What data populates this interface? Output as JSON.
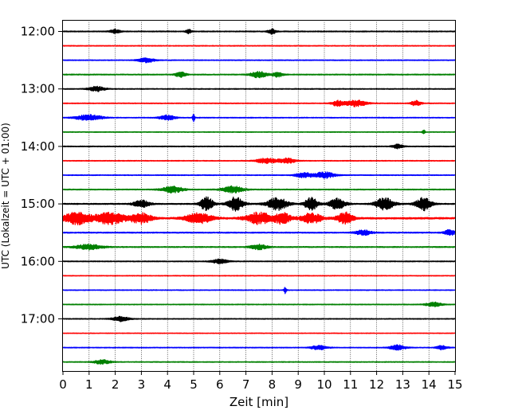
{
  "chart_data": {
    "type": "line",
    "title": "",
    "xlabel": "Zeit  [min]",
    "ylabel": "UTC (Lokalzeit = UTC + 01:00)",
    "xlim": [
      0,
      15
    ],
    "x_ticks": [
      "0",
      "1",
      "2",
      "3",
      "4",
      "5",
      "6",
      "7",
      "8",
      "9",
      "10",
      "11",
      "12",
      "13",
      "14",
      "15"
    ],
    "y_ticks": [
      {
        "label": "12:00",
        "row": 0
      },
      {
        "label": "13:00",
        "row": 4
      },
      {
        "label": "14:00",
        "row": 8
      },
      {
        "label": "15:00",
        "row": 12
      },
      {
        "label": "16:00",
        "row": 16
      },
      {
        "label": "17:00",
        "row": 20
      }
    ],
    "grid": "x-dotted",
    "trace_colors": [
      "#000000",
      "#ff0000",
      "#0000ff",
      "#008000"
    ],
    "rows": [
      {
        "time": "12:00",
        "level": 0.18,
        "bursts": [
          {
            "x": 2.0,
            "amp": 0.25,
            "w": 0.2
          },
          {
            "x": 8.0,
            "amp": 0.35,
            "w": 0.15
          },
          {
            "x": 4.8,
            "amp": 0.3,
            "w": 0.1
          }
        ]
      },
      {
        "time": "12:15",
        "level": 0.15,
        "bursts": []
      },
      {
        "time": "12:30",
        "level": 0.15,
        "bursts": [
          {
            "x": 3.2,
            "amp": 0.35,
            "w": 0.3
          }
        ]
      },
      {
        "time": "12:45",
        "level": 0.18,
        "bursts": [
          {
            "x": 4.5,
            "amp": 0.35,
            "w": 0.2
          },
          {
            "x": 7.5,
            "amp": 0.45,
            "w": 0.3
          },
          {
            "x": 8.2,
            "amp": 0.35,
            "w": 0.2
          }
        ]
      },
      {
        "time": "13:00",
        "level": 0.16,
        "bursts": [
          {
            "x": 1.3,
            "amp": 0.35,
            "w": 0.3
          }
        ]
      },
      {
        "time": "13:15",
        "level": 0.15,
        "bursts": [
          {
            "x": 10.5,
            "amp": 0.4,
            "w": 0.2
          },
          {
            "x": 11.2,
            "amp": 0.45,
            "w": 0.4
          },
          {
            "x": 13.5,
            "amp": 0.35,
            "w": 0.2
          }
        ]
      },
      {
        "time": "13:30",
        "level": 0.15,
        "bursts": [
          {
            "x": 1.0,
            "amp": 0.4,
            "w": 0.5
          },
          {
            "x": 4.0,
            "amp": 0.35,
            "w": 0.3
          },
          {
            "x": 5.0,
            "amp": 0.6,
            "w": 0.04
          }
        ]
      },
      {
        "time": "13:45",
        "level": 0.14,
        "bursts": [
          {
            "x": 13.8,
            "amp": 0.35,
            "w": 0.05
          }
        ]
      },
      {
        "time": "14:00",
        "level": 0.16,
        "bursts": [
          {
            "x": 12.8,
            "amp": 0.3,
            "w": 0.2
          }
        ]
      },
      {
        "time": "14:15",
        "level": 0.15,
        "bursts": [
          {
            "x": 7.8,
            "amp": 0.35,
            "w": 0.4
          },
          {
            "x": 8.6,
            "amp": 0.35,
            "w": 0.3
          }
        ]
      },
      {
        "time": "14:30",
        "level": 0.15,
        "bursts": [
          {
            "x": 9.2,
            "amp": 0.35,
            "w": 0.3
          },
          {
            "x": 10.0,
            "amp": 0.45,
            "w": 0.4
          }
        ]
      },
      {
        "time": "14:45",
        "level": 0.18,
        "bursts": [
          {
            "x": 4.2,
            "amp": 0.45,
            "w": 0.4
          },
          {
            "x": 6.5,
            "amp": 0.45,
            "w": 0.4
          }
        ]
      },
      {
        "time": "15:00",
        "level": 0.22,
        "bursts": [
          {
            "x": 5.5,
            "amp": 0.95,
            "w": 0.25
          },
          {
            "x": 6.6,
            "amp": 0.95,
            "w": 0.3
          },
          {
            "x": 8.2,
            "amp": 0.85,
            "w": 0.4
          },
          {
            "x": 9.5,
            "amp": 0.9,
            "w": 0.25
          },
          {
            "x": 10.5,
            "amp": 0.8,
            "w": 0.3
          },
          {
            "x": 12.3,
            "amp": 0.85,
            "w": 0.35
          },
          {
            "x": 13.8,
            "amp": 0.9,
            "w": 0.3
          },
          {
            "x": 3.0,
            "amp": 0.5,
            "w": 0.3
          }
        ]
      },
      {
        "time": "15:15",
        "level": 0.3,
        "bursts": [
          {
            "x": 0.5,
            "amp": 0.85,
            "w": 0.5
          },
          {
            "x": 1.8,
            "amp": 0.8,
            "w": 0.6
          },
          {
            "x": 3.0,
            "amp": 0.7,
            "w": 0.4
          },
          {
            "x": 5.2,
            "amp": 0.7,
            "w": 0.5
          },
          {
            "x": 7.5,
            "amp": 0.8,
            "w": 0.5
          },
          {
            "x": 8.4,
            "amp": 0.75,
            "w": 0.3
          },
          {
            "x": 9.5,
            "amp": 0.7,
            "w": 0.4
          },
          {
            "x": 10.8,
            "amp": 0.8,
            "w": 0.3
          }
        ]
      },
      {
        "time": "15:30",
        "level": 0.2,
        "bursts": [
          {
            "x": 11.5,
            "amp": 0.35,
            "w": 0.3
          },
          {
            "x": 14.8,
            "amp": 0.4,
            "w": 0.2
          }
        ]
      },
      {
        "time": "15:45",
        "level": 0.2,
        "bursts": [
          {
            "x": 1.0,
            "amp": 0.35,
            "w": 0.5
          },
          {
            "x": 7.5,
            "amp": 0.35,
            "w": 0.3
          }
        ]
      },
      {
        "time": "16:00",
        "level": 0.17,
        "bursts": [
          {
            "x": 6.0,
            "amp": 0.3,
            "w": 0.3
          }
        ]
      },
      {
        "time": "16:15",
        "level": 0.13,
        "bursts": []
      },
      {
        "time": "16:30",
        "level": 0.14,
        "bursts": [
          {
            "x": 8.5,
            "amp": 0.5,
            "w": 0.05
          }
        ]
      },
      {
        "time": "16:45",
        "level": 0.15,
        "bursts": [
          {
            "x": 14.2,
            "amp": 0.3,
            "w": 0.3
          }
        ]
      },
      {
        "time": "17:00",
        "level": 0.15,
        "bursts": [
          {
            "x": 2.2,
            "amp": 0.35,
            "w": 0.3
          }
        ]
      },
      {
        "time": "17:15",
        "level": 0.12,
        "bursts": []
      },
      {
        "time": "17:30",
        "level": 0.15,
        "bursts": [
          {
            "x": 9.8,
            "amp": 0.3,
            "w": 0.3
          },
          {
            "x": 12.8,
            "amp": 0.35,
            "w": 0.3
          },
          {
            "x": 14.5,
            "amp": 0.3,
            "w": 0.2
          }
        ]
      },
      {
        "time": "17:45",
        "level": 0.15,
        "bursts": [
          {
            "x": 1.5,
            "amp": 0.3,
            "w": 0.3
          }
        ]
      }
    ]
  }
}
